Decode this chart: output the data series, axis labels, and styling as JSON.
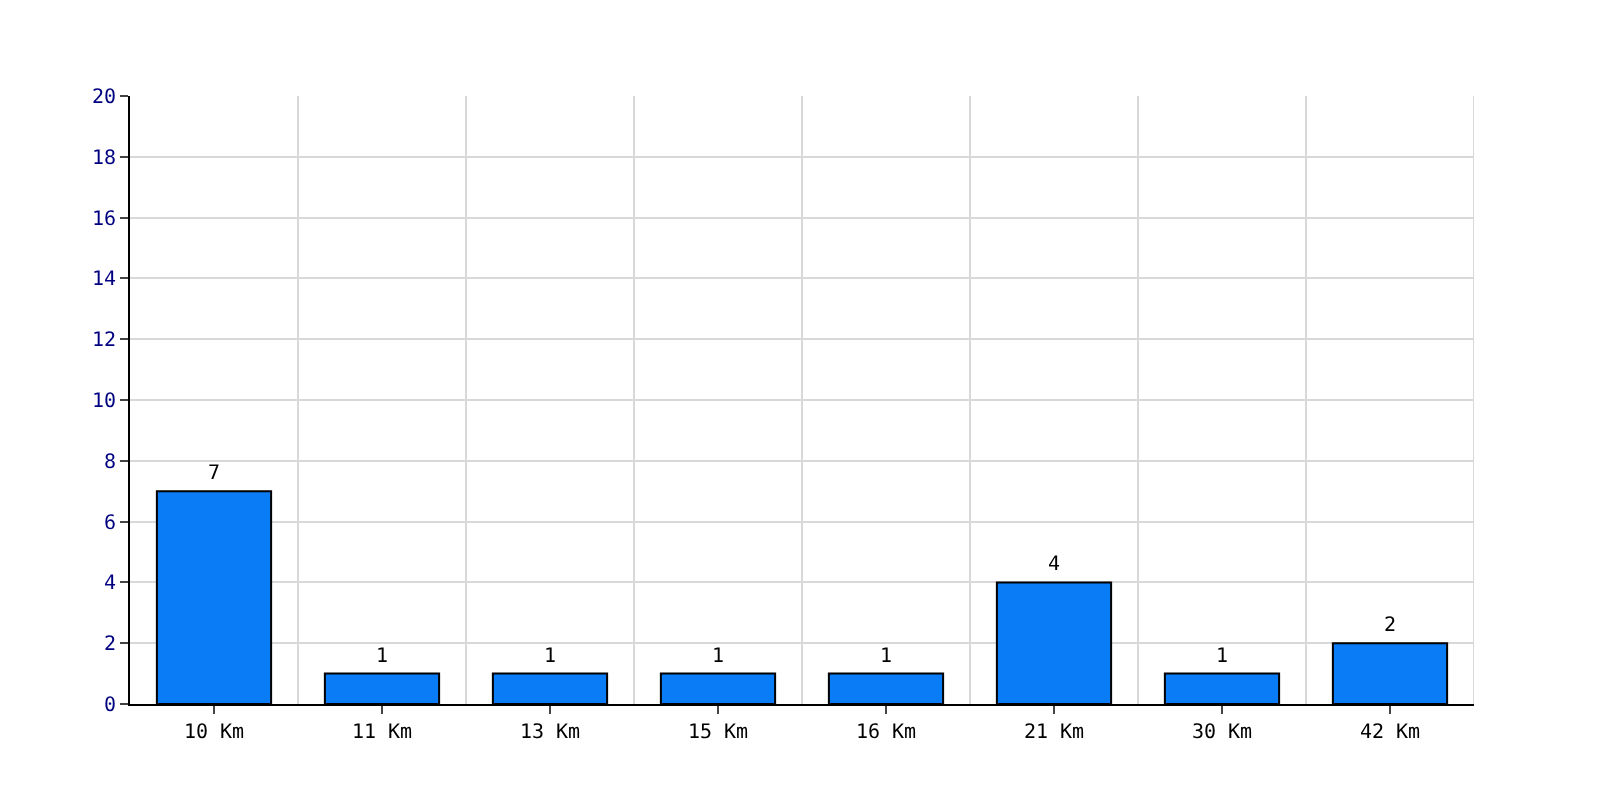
{
  "chart_data": {
    "type": "bar",
    "categories": [
      "10 Km",
      "11 Km",
      "13 Km",
      "15 Km",
      "16 Km",
      "21 Km",
      "30 Km",
      "42 Km"
    ],
    "values": [
      7,
      1,
      1,
      1,
      1,
      4,
      1,
      2
    ],
    "color": "#0a7cf5",
    "ylim": [
      0,
      20
    ],
    "yticks": [
      0,
      2,
      4,
      6,
      8,
      10,
      12,
      14,
      16,
      18,
      20
    ],
    "grid": true,
    "data_labels": true
  }
}
